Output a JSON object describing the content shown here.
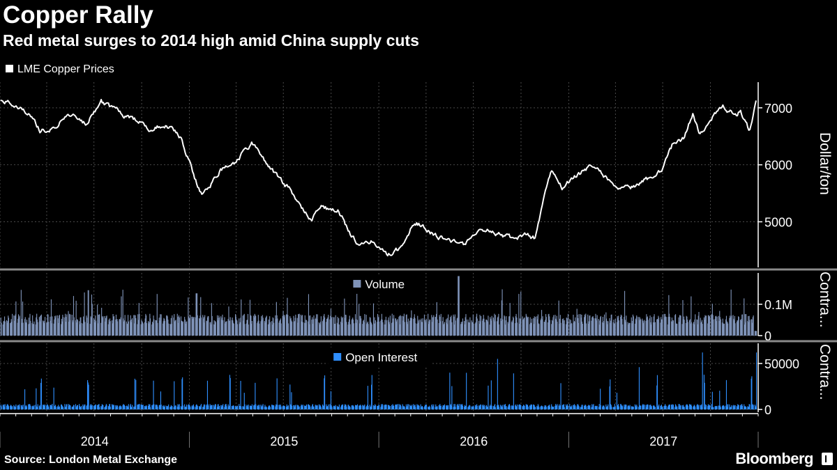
{
  "header": {
    "title": "Copper Rally",
    "subtitle": "Red metal surges to 2014 high amid China supply cuts",
    "source": "Source: London Metal Exchange",
    "brand": "Bloomberg"
  },
  "colors": {
    "background": "#000000",
    "price_line": "#ffffff",
    "volume": "#7f93b8",
    "open_interest": "#2f8fff",
    "grid": "#4a4a4a",
    "divider": "#8a8a8a"
  },
  "chart_data": [
    {
      "type": "line",
      "name": "price-panel",
      "legend": "LME Copper Prices",
      "ylabel": "Dollar/ton",
      "ylim": [
        4200,
        7450
      ],
      "yticks": [
        5000,
        6000,
        7000
      ],
      "ytick_labels": [
        "5000",
        "6000",
        "7000"
      ],
      "grid": true,
      "x": [
        "2014-01-02",
        "2014-02-01",
        "2014-03-01",
        "2014-03-20",
        "2014-04-15",
        "2014-05-15",
        "2014-06-15",
        "2014-07-15",
        "2014-08-15",
        "2014-09-15",
        "2014-10-15",
        "2014-11-15",
        "2014-12-15",
        "2015-01-10",
        "2015-01-26",
        "2015-03-01",
        "2015-04-01",
        "2015-05-01",
        "2015-05-20",
        "2015-06-15",
        "2015-07-15",
        "2015-08-10",
        "2015-08-25",
        "2015-09-15",
        "2015-10-15",
        "2015-11-10",
        "2015-11-25",
        "2015-12-20",
        "2016-01-15",
        "2016-02-15",
        "2016-03-10",
        "2016-04-01",
        "2016-04-20",
        "2016-05-20",
        "2016-06-15",
        "2016-07-15",
        "2016-08-20",
        "2016-09-15",
        "2016-10-15",
        "2016-10-28",
        "2016-11-15",
        "2016-11-30",
        "2016-12-20",
        "2017-01-15",
        "2017-02-14",
        "2017-03-10",
        "2017-04-05",
        "2017-05-08",
        "2017-06-10",
        "2017-06-30",
        "2017-07-20",
        "2017-08-10",
        "2017-08-28",
        "2017-09-10",
        "2017-10-03",
        "2017-10-25",
        "2017-11-20",
        "2017-11-27",
        "2017-12-15",
        "2017-12-28"
      ],
      "y": [
        7120,
        7050,
        6850,
        6600,
        6650,
        6900,
        6700,
        7100,
        6950,
        6800,
        6650,
        6700,
        6500,
        5800,
        5450,
        5900,
        6050,
        6400,
        6150,
        5850,
        5550,
        5200,
        5050,
        5250,
        5200,
        4750,
        4600,
        4650,
        4400,
        4550,
        5000,
        4900,
        4750,
        4650,
        4600,
        4900,
        4780,
        4700,
        4750,
        4700,
        5500,
        5900,
        5600,
        5800,
        6000,
        5800,
        5650,
        5600,
        5800,
        5900,
        6350,
        6450,
        6900,
        6500,
        6800,
        7050,
        6850,
        6950,
        6600,
        7150
      ]
    },
    {
      "type": "bar",
      "name": "volume-panel",
      "legend": "Volume",
      "ylabel": "Contra...",
      "ylim": [
        0,
        200000
      ],
      "yticks": [
        0,
        100000
      ],
      "ytick_labels": [
        "0",
        "0.1M"
      ]
    },
    {
      "type": "bar",
      "name": "open-interest-panel",
      "legend": "Open Interest",
      "ylabel": "Contra...",
      "ylim": [
        -3000,
        72000
      ],
      "yticks": [
        0,
        50000
      ],
      "ytick_labels": [
        "0",
        "50000"
      ]
    }
  ],
  "xaxis": {
    "start": "2014-01-01",
    "end": "2018-01-01",
    "year_labels": [
      "2014",
      "2015",
      "2016",
      "2017"
    ]
  }
}
